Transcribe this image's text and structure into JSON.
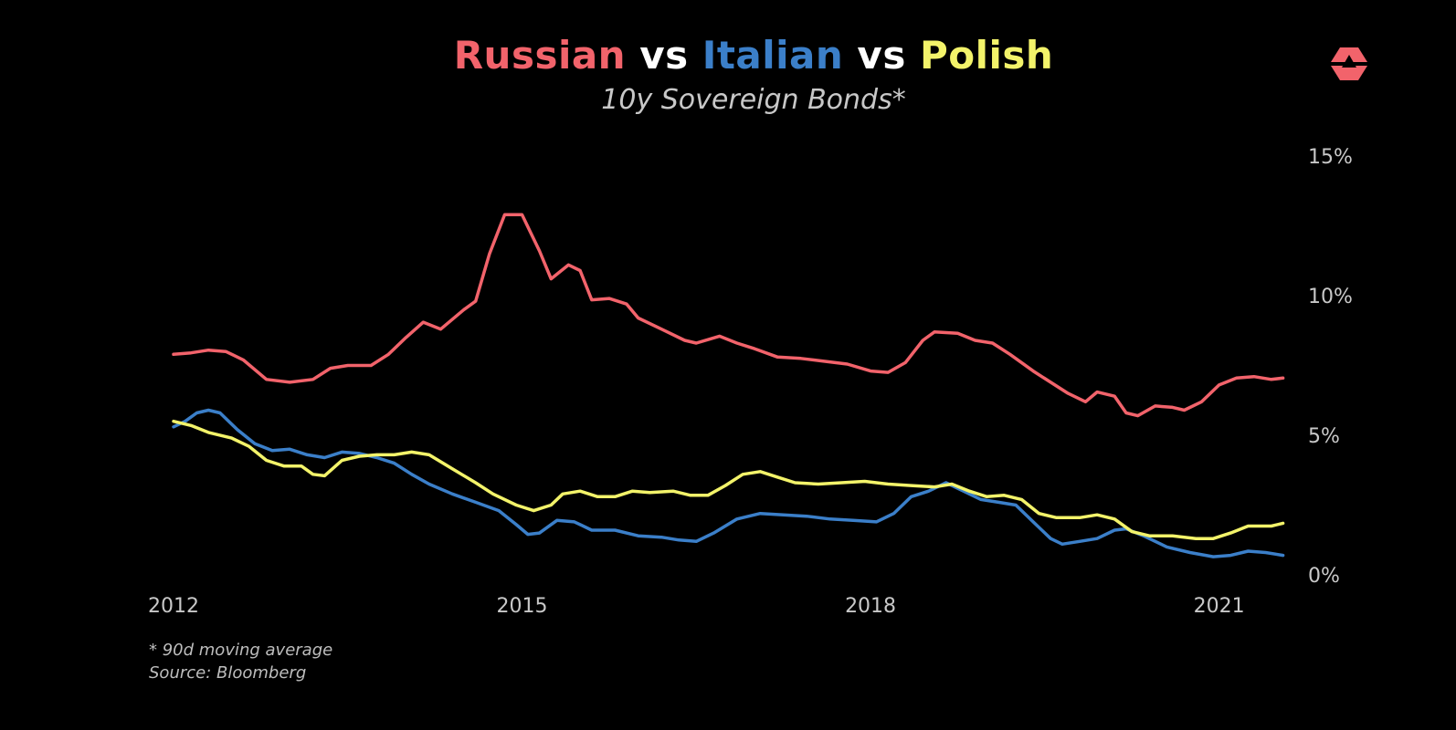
{
  "header": {
    "title_parts": [
      {
        "text": "Russian",
        "color": "#f2636b"
      },
      {
        "text": " vs ",
        "color": "#ffffff"
      },
      {
        "text": "Italian",
        "color": "#3b7fc9"
      },
      {
        "text": " vs ",
        "color": "#ffffff"
      },
      {
        "text": "Polish",
        "color": "#f3f36a"
      }
    ],
    "subtitle": "10y Sovereign Bonds*"
  },
  "logo": {
    "icon": "triangle-logo-icon",
    "color": "#f2636b"
  },
  "footer": {
    "note": "* 90d moving average",
    "source": "Source: Bloomberg"
  },
  "chart_data": {
    "type": "line",
    "x_ticks": [
      2012,
      2015,
      2018,
      2021
    ],
    "xlim": [
      2012.0,
      2021.75
    ],
    "y_ticks": [
      {
        "value": 0,
        "label": "0%"
      },
      {
        "value": 5,
        "label": "5%"
      },
      {
        "value": 10,
        "label": "10%"
      },
      {
        "value": 15,
        "label": "15%"
      }
    ],
    "ylim": [
      0,
      15
    ],
    "y_axis_position": "right",
    "grid": false,
    "series": [
      {
        "name": "Russian",
        "color": "#f2636b",
        "points": [
          [
            2012.0,
            7.9
          ],
          [
            2012.15,
            7.95
          ],
          [
            2012.3,
            8.05
          ],
          [
            2012.45,
            8.0
          ],
          [
            2012.6,
            7.7
          ],
          [
            2012.8,
            7.0
          ],
          [
            2013.0,
            6.9
          ],
          [
            2013.2,
            7.0
          ],
          [
            2013.35,
            7.4
          ],
          [
            2013.5,
            7.5
          ],
          [
            2013.7,
            7.5
          ],
          [
            2013.85,
            7.9
          ],
          [
            2014.0,
            8.5
          ],
          [
            2014.15,
            9.05
          ],
          [
            2014.3,
            8.8
          ],
          [
            2014.5,
            9.5
          ],
          [
            2014.6,
            9.8
          ],
          [
            2014.72,
            11.5
          ],
          [
            2014.85,
            12.9
          ],
          [
            2015.0,
            12.9
          ],
          [
            2015.15,
            11.6
          ],
          [
            2015.25,
            10.6
          ],
          [
            2015.4,
            11.1
          ],
          [
            2015.5,
            10.9
          ],
          [
            2015.6,
            9.85
          ],
          [
            2015.75,
            9.9
          ],
          [
            2015.9,
            9.7
          ],
          [
            2016.0,
            9.2
          ],
          [
            2016.2,
            8.8
          ],
          [
            2016.4,
            8.4
          ],
          [
            2016.5,
            8.3
          ],
          [
            2016.7,
            8.55
          ],
          [
            2016.85,
            8.3
          ],
          [
            2017.0,
            8.1
          ],
          [
            2017.2,
            7.8
          ],
          [
            2017.4,
            7.75
          ],
          [
            2017.6,
            7.65
          ],
          [
            2017.8,
            7.55
          ],
          [
            2018.0,
            7.3
          ],
          [
            2018.15,
            7.25
          ],
          [
            2018.3,
            7.6
          ],
          [
            2018.45,
            8.4
          ],
          [
            2018.55,
            8.7
          ],
          [
            2018.75,
            8.65
          ],
          [
            2018.9,
            8.4
          ],
          [
            2019.05,
            8.3
          ],
          [
            2019.2,
            7.9
          ],
          [
            2019.4,
            7.3
          ],
          [
            2019.55,
            6.9
          ],
          [
            2019.7,
            6.5
          ],
          [
            2019.85,
            6.2
          ],
          [
            2019.95,
            6.55
          ],
          [
            2020.1,
            6.4
          ],
          [
            2020.2,
            5.8
          ],
          [
            2020.3,
            5.7
          ],
          [
            2020.45,
            6.05
          ],
          [
            2020.6,
            6.0
          ],
          [
            2020.7,
            5.9
          ],
          [
            2020.85,
            6.2
          ],
          [
            2021.0,
            6.8
          ],
          [
            2021.15,
            7.05
          ],
          [
            2021.3,
            7.1
          ],
          [
            2021.45,
            7.0
          ],
          [
            2021.55,
            7.05
          ]
        ]
      },
      {
        "name": "Italian",
        "color": "#3b7fc9",
        "points": [
          [
            2012.0,
            5.3
          ],
          [
            2012.1,
            5.5
          ],
          [
            2012.2,
            5.8
          ],
          [
            2012.3,
            5.9
          ],
          [
            2012.4,
            5.8
          ],
          [
            2012.55,
            5.2
          ],
          [
            2012.7,
            4.7
          ],
          [
            2012.85,
            4.45
          ],
          [
            2013.0,
            4.5
          ],
          [
            2013.15,
            4.3
          ],
          [
            2013.3,
            4.2
          ],
          [
            2013.45,
            4.4
          ],
          [
            2013.6,
            4.35
          ],
          [
            2013.75,
            4.2
          ],
          [
            2013.9,
            4.0
          ],
          [
            2014.05,
            3.6
          ],
          [
            2014.2,
            3.25
          ],
          [
            2014.4,
            2.9
          ],
          [
            2014.6,
            2.6
          ],
          [
            2014.8,
            2.3
          ],
          [
            2014.95,
            1.8
          ],
          [
            2015.05,
            1.45
          ],
          [
            2015.15,
            1.5
          ],
          [
            2015.3,
            1.95
          ],
          [
            2015.45,
            1.9
          ],
          [
            2015.6,
            1.6
          ],
          [
            2015.8,
            1.6
          ],
          [
            2016.0,
            1.4
          ],
          [
            2016.2,
            1.35
          ],
          [
            2016.35,
            1.25
          ],
          [
            2016.5,
            1.2
          ],
          [
            2016.65,
            1.5
          ],
          [
            2016.85,
            2.0
          ],
          [
            2017.05,
            2.2
          ],
          [
            2017.25,
            2.15
          ],
          [
            2017.45,
            2.1
          ],
          [
            2017.65,
            2.0
          ],
          [
            2017.85,
            1.95
          ],
          [
            2018.05,
            1.9
          ],
          [
            2018.2,
            2.2
          ],
          [
            2018.35,
            2.8
          ],
          [
            2018.5,
            3.0
          ],
          [
            2018.65,
            3.3
          ],
          [
            2018.8,
            3.0
          ],
          [
            2018.95,
            2.7
          ],
          [
            2019.1,
            2.6
          ],
          [
            2019.25,
            2.5
          ],
          [
            2019.4,
            1.9
          ],
          [
            2019.55,
            1.3
          ],
          [
            2019.65,
            1.1
          ],
          [
            2019.8,
            1.2
          ],
          [
            2019.95,
            1.3
          ],
          [
            2020.1,
            1.6
          ],
          [
            2020.2,
            1.65
          ],
          [
            2020.35,
            1.4
          ],
          [
            2020.55,
            1.0
          ],
          [
            2020.75,
            0.8
          ],
          [
            2020.95,
            0.65
          ],
          [
            2021.1,
            0.7
          ],
          [
            2021.25,
            0.85
          ],
          [
            2021.4,
            0.8
          ],
          [
            2021.55,
            0.7
          ]
        ]
      },
      {
        "name": "Polish",
        "color": "#f3f36a",
        "points": [
          [
            2012.0,
            5.5
          ],
          [
            2012.15,
            5.35
          ],
          [
            2012.3,
            5.1
          ],
          [
            2012.5,
            4.9
          ],
          [
            2012.65,
            4.6
          ],
          [
            2012.8,
            4.1
          ],
          [
            2012.95,
            3.9
          ],
          [
            2013.1,
            3.9
          ],
          [
            2013.2,
            3.6
          ],
          [
            2013.3,
            3.55
          ],
          [
            2013.45,
            4.1
          ],
          [
            2013.6,
            4.25
          ],
          [
            2013.75,
            4.3
          ],
          [
            2013.9,
            4.3
          ],
          [
            2014.05,
            4.4
          ],
          [
            2014.2,
            4.3
          ],
          [
            2014.4,
            3.8
          ],
          [
            2014.6,
            3.3
          ],
          [
            2014.75,
            2.9
          ],
          [
            2014.95,
            2.5
          ],
          [
            2015.1,
            2.3
          ],
          [
            2015.25,
            2.5
          ],
          [
            2015.35,
            2.9
          ],
          [
            2015.5,
            3.0
          ],
          [
            2015.65,
            2.8
          ],
          [
            2015.8,
            2.8
          ],
          [
            2015.95,
            3.0
          ],
          [
            2016.1,
            2.95
          ],
          [
            2016.3,
            3.0
          ],
          [
            2016.45,
            2.85
          ],
          [
            2016.6,
            2.85
          ],
          [
            2016.75,
            3.2
          ],
          [
            2016.9,
            3.6
          ],
          [
            2017.05,
            3.7
          ],
          [
            2017.2,
            3.5
          ],
          [
            2017.35,
            3.3
          ],
          [
            2017.55,
            3.25
          ],
          [
            2017.75,
            3.3
          ],
          [
            2017.95,
            3.35
          ],
          [
            2018.15,
            3.25
          ],
          [
            2018.35,
            3.2
          ],
          [
            2018.55,
            3.15
          ],
          [
            2018.7,
            3.25
          ],
          [
            2018.85,
            3.0
          ],
          [
            2019.0,
            2.8
          ],
          [
            2019.15,
            2.85
          ],
          [
            2019.3,
            2.7
          ],
          [
            2019.45,
            2.2
          ],
          [
            2019.6,
            2.05
          ],
          [
            2019.8,
            2.05
          ],
          [
            2019.95,
            2.15
          ],
          [
            2020.1,
            2.0
          ],
          [
            2020.25,
            1.55
          ],
          [
            2020.4,
            1.4
          ],
          [
            2020.6,
            1.4
          ],
          [
            2020.8,
            1.3
          ],
          [
            2020.95,
            1.3
          ],
          [
            2021.1,
            1.5
          ],
          [
            2021.25,
            1.75
          ],
          [
            2021.45,
            1.75
          ],
          [
            2021.55,
            1.85
          ]
        ]
      }
    ]
  }
}
